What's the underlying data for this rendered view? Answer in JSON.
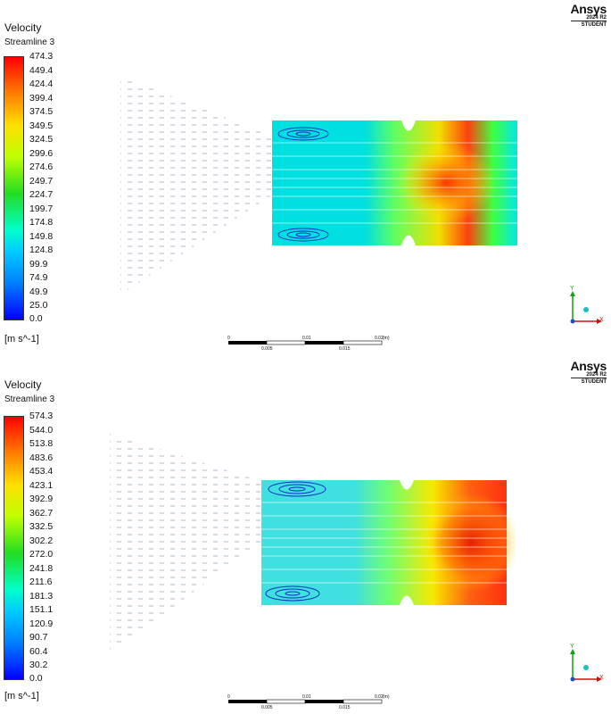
{
  "panels": [
    {
      "title": "Velocity",
      "subtitle": "Streamline 3",
      "legend_values": [
        "474.3",
        "449.4",
        "424.4",
        "399.4",
        "374.5",
        "349.5",
        "324.5",
        "299.6",
        "274.6",
        "249.7",
        "224.7",
        "199.7",
        "174.8",
        "149.8",
        "124.8",
        "99.9",
        "74.9",
        "49.9",
        "25.0",
        "0.0"
      ],
      "unit": "[m s^-1]",
      "brand": {
        "logo": "Ansys",
        "version": "2024 R2",
        "edition": "STUDENT"
      },
      "scale": {
        "top": [
          "0",
          "0.01",
          "0.02",
          "(m)"
        ],
        "bottom": [
          "0.005",
          "0.015"
        ]
      },
      "axes": {
        "y": "Y",
        "x": "X"
      }
    },
    {
      "title": "Velocity",
      "subtitle": "Streamline 3",
      "legend_values": [
        "574.3",
        "544.0",
        "513.8",
        "483.6",
        "453.4",
        "423.1",
        "392.9",
        "362.7",
        "332.5",
        "302.2",
        "272.0",
        "241.8",
        "211.6",
        "181.3",
        "151.1",
        "120.9",
        "90.7",
        "60.4",
        "30.2",
        "0.0"
      ],
      "unit": "[m s^-1]",
      "brand": {
        "logo": "Ansys",
        "version": "2024 R2",
        "edition": "STUDENT"
      },
      "scale": {
        "top": [
          "0",
          "0.01",
          "0.02",
          "(m)"
        ],
        "bottom": [
          "0.005",
          "0.015"
        ]
      },
      "axes": {
        "y": "Y",
        "x": "X"
      }
    }
  ],
  "colors": {
    "max": "#ff0000",
    "mid": "#22dd22",
    "min": "#0000ff",
    "axis_x": "#d01010",
    "axis_y": "#10a010",
    "axis_z": "#2050c0"
  }
}
